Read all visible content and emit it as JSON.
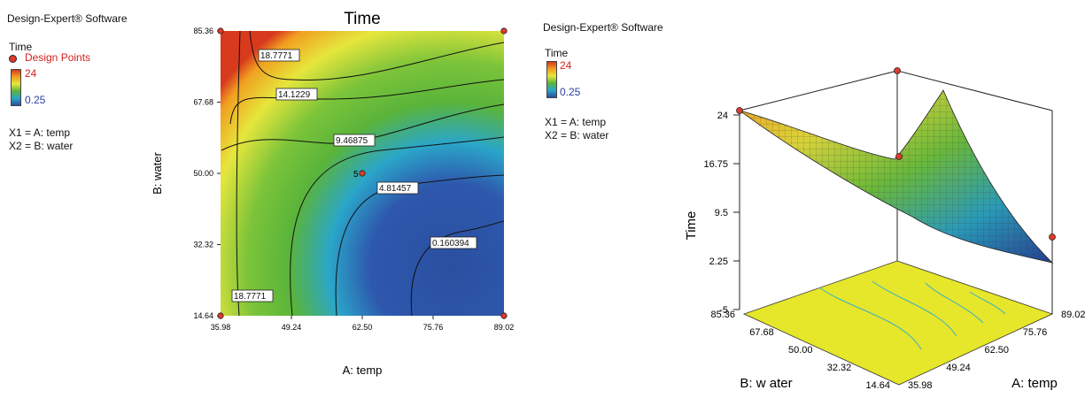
{
  "left_panel": {
    "software": "Design-Expert® Software",
    "response": "Time",
    "design_points": "Design Points",
    "max": "24",
    "min": "0.25",
    "x1": "X1 = A: temp",
    "x2": "X2 = B: water"
  },
  "right_panel": {
    "software": "Design-Expert® Software",
    "response": "Time",
    "max": "24",
    "min": "0.25",
    "x1": "X1 = A: temp",
    "x2": "X2 = B: water"
  },
  "chart_data": [
    {
      "type": "heatmap",
      "subtype": "contour",
      "title": "Time",
      "xlabel": "A: temp",
      "ylabel": "B: water",
      "xlim": [
        35.98,
        89.02
      ],
      "ylim": [
        14.64,
        85.36
      ],
      "xticks": [
        "35.98",
        "49.24",
        "62.50",
        "75.76",
        "89.02"
      ],
      "yticks": [
        "14.64",
        "32.32",
        "50.00",
        "67.68",
        "85.36"
      ],
      "contour_levels": [
        "18.7771",
        "14.1229",
        "9.46875",
        "4.81457",
        "0.160394"
      ],
      "color_range": [
        0.25,
        24
      ],
      "design_points": [
        {
          "x": 35.98,
          "y": 85.36
        },
        {
          "x": 89.02,
          "y": 85.36
        },
        {
          "x": 35.98,
          "y": 14.64
        },
        {
          "x": 89.02,
          "y": 14.64
        },
        {
          "x": 62.5,
          "y": 50.0,
          "label": "5"
        }
      ]
    },
    {
      "type": "surface",
      "zlabel": "Time",
      "xlabel": "A: temp",
      "ylabel": "B: w ater",
      "xticks": [
        "35.98",
        "49.24",
        "62.50",
        "75.76",
        "89.02"
      ],
      "yticks": [
        "14.64",
        "32.32",
        "50.00",
        "67.68",
        "85.36"
      ],
      "zticks": [
        "-5",
        "2.25",
        "9.5",
        "16.75",
        "24"
      ],
      "zlim": [
        -5,
        24
      ],
      "design_points": [
        "corner",
        "center",
        "corner",
        "corner"
      ]
    }
  ],
  "colors": {
    "red": "#d83a1e",
    "orange": "#f0a020",
    "yellow": "#e6e63c",
    "green": "#5ab43a",
    "cyan": "#2aa6c9",
    "blue": "#2a4fa0",
    "floor": "#e6e62a"
  }
}
